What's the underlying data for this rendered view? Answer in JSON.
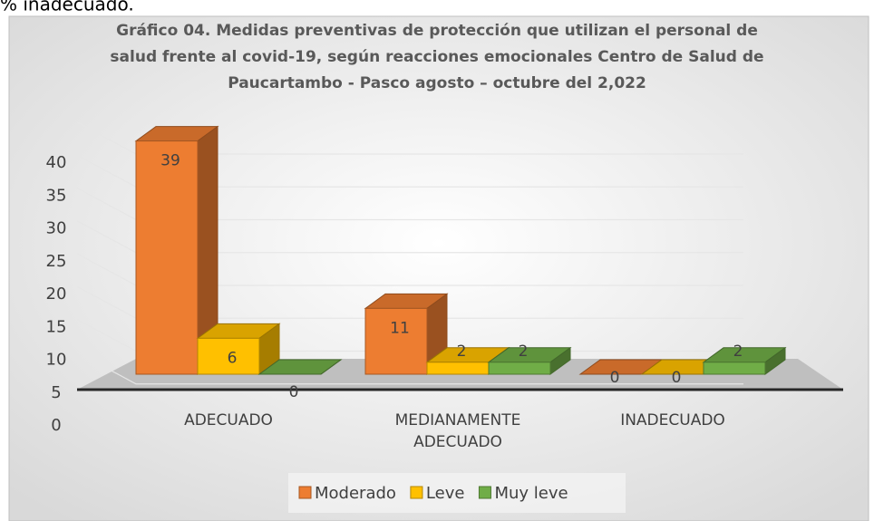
{
  "page_text": "% inadecuado.",
  "chart_data": {
    "type": "bar3d",
    "title": "Gráfico 04. Medidas preventivas de protección que utilizan el personal de salud frente al  covid-19, según reacciones emocionales Centro de Salud de Paucartambo - Pasco agosto – octubre del 2,022",
    "categories": [
      "ADECUADO",
      "MEDIANAMENTE ADECUADO",
      "INADECUADO"
    ],
    "series": [
      {
        "name": "Moderado",
        "color": "#ed7d31",
        "values": [
          39,
          11,
          0
        ]
      },
      {
        "name": "Leve",
        "color": "#ffc000",
        "values": [
          6,
          2,
          0
        ]
      },
      {
        "name": "Muy leve",
        "color": "#70ad47",
        "values": [
          0,
          2,
          2
        ]
      }
    ],
    "ylim": [
      0,
      40
    ],
    "yticks": [
      0,
      5,
      10,
      15,
      20,
      25,
      30,
      35,
      40
    ],
    "grid": true,
    "legend": "bottom"
  }
}
